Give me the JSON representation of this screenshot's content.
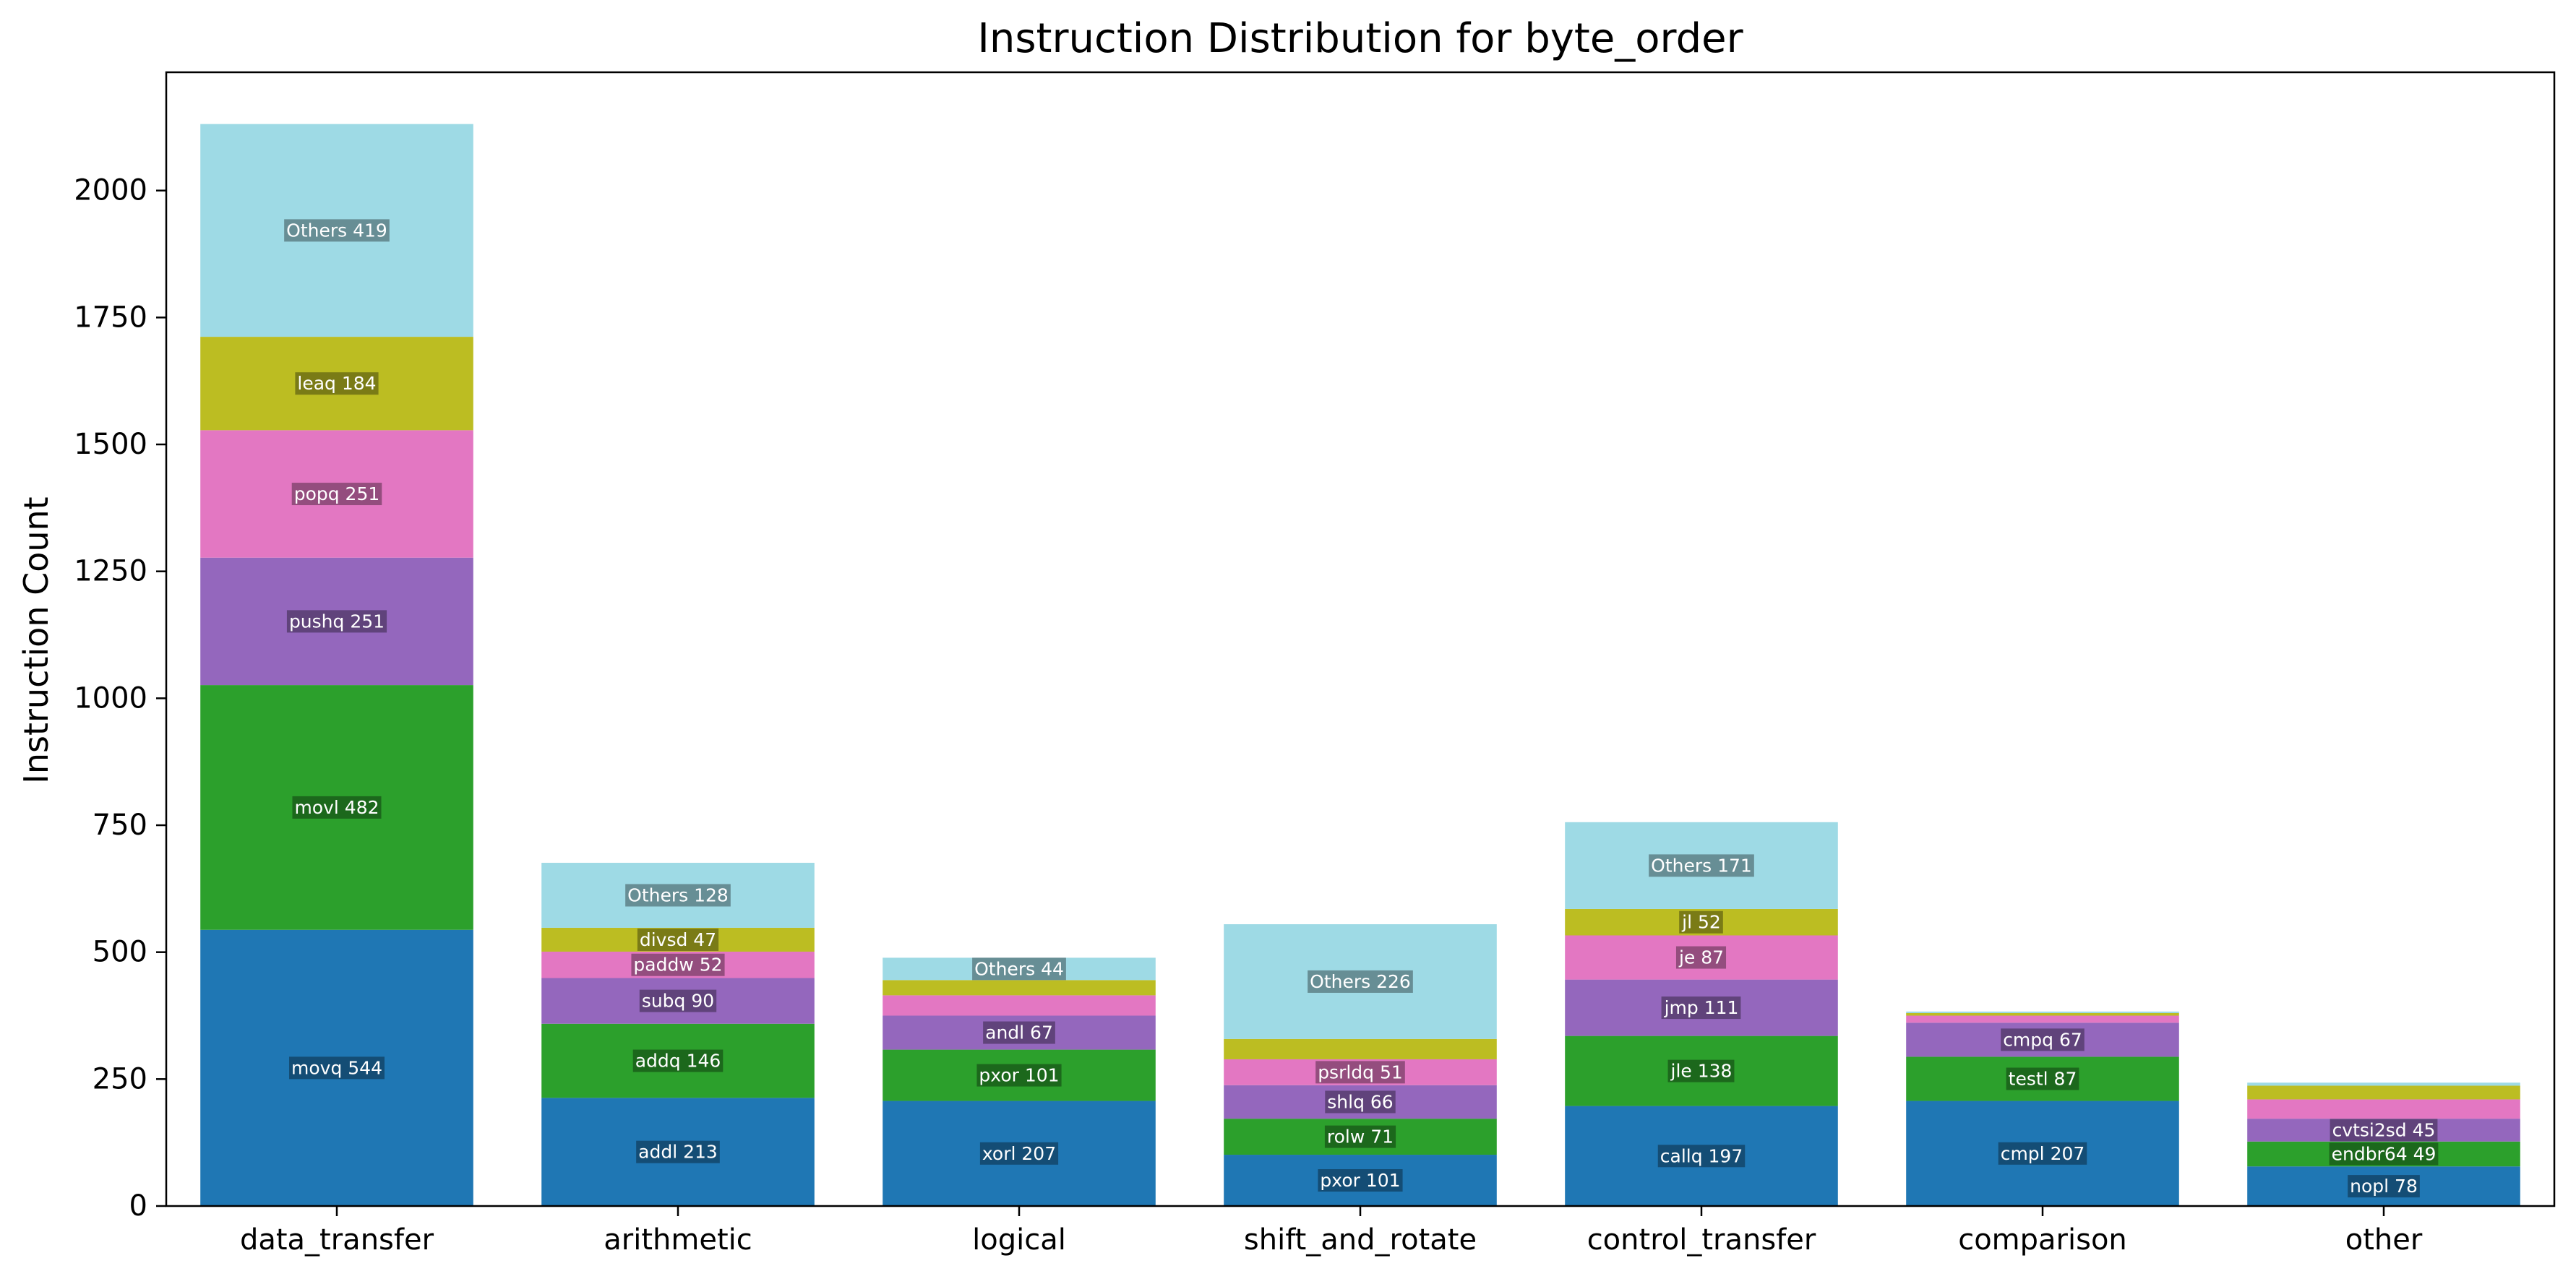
{
  "chart_data": {
    "type": "bar",
    "stacked": true,
    "title": "Instruction Distribution for byte_order",
    "xlabel": "",
    "ylabel": "Instruction Count",
    "ylim": [
      0,
      2233
    ],
    "yticks": [
      0,
      250,
      500,
      750,
      1000,
      1250,
      1500,
      1750,
      2000
    ],
    "grid": false,
    "legend": "none",
    "layer_colors": [
      "#1f77b4",
      "#2ca02c",
      "#9467bd",
      "#e377c2",
      "#bcbd22",
      "#9edae5"
    ],
    "categories": [
      "data_transfer",
      "arithmetic",
      "logical",
      "shift_and_rotate",
      "control_transfer",
      "comparison",
      "other"
    ],
    "stacks": [
      [
        {
          "label": "movq",
          "value": 544
        },
        {
          "label": "movl",
          "value": 482
        },
        {
          "label": "pushq",
          "value": 251
        },
        {
          "label": "popq",
          "value": 251
        },
        {
          "label": "leaq",
          "value": 184
        },
        {
          "label": "Others",
          "value": 419
        }
      ],
      [
        {
          "label": "addl",
          "value": 213
        },
        {
          "label": "addq",
          "value": 146
        },
        {
          "label": "subq",
          "value": 90
        },
        {
          "label": "paddw",
          "value": 52
        },
        {
          "label": "divsd",
          "value": 47
        },
        {
          "label": "Others",
          "value": 128
        }
      ],
      [
        {
          "label": "xorl",
          "value": 207
        },
        {
          "label": "pxor",
          "value": 101
        },
        {
          "label": "andl",
          "value": 67
        },
        {
          "label": "",
          "value": 40
        },
        {
          "label": "",
          "value": 30
        },
        {
          "label": "Others",
          "value": 44
        }
      ],
      [
        {
          "label": "pxor",
          "value": 101
        },
        {
          "label": "rolw",
          "value": 71
        },
        {
          "label": "shlq",
          "value": 66
        },
        {
          "label": "psrldq",
          "value": 51
        },
        {
          "label": "",
          "value": 40
        },
        {
          "label": "Others",
          "value": 226
        }
      ],
      [
        {
          "label": "callq",
          "value": 197
        },
        {
          "label": "jle",
          "value": 138
        },
        {
          "label": "jmp",
          "value": 111
        },
        {
          "label": "je",
          "value": 87
        },
        {
          "label": "jl",
          "value": 52
        },
        {
          "label": "Others",
          "value": 171
        }
      ],
      [
        {
          "label": "cmpl",
          "value": 207
        },
        {
          "label": "testl",
          "value": 87
        },
        {
          "label": "cmpq",
          "value": 67
        },
        {
          "label": "",
          "value": 14
        },
        {
          "label": "",
          "value": 5
        },
        {
          "label": "",
          "value": 3
        }
      ],
      [
        {
          "label": "nopl",
          "value": 78
        },
        {
          "label": "endbr64",
          "value": 49
        },
        {
          "label": "cvtsi2sd",
          "value": 45
        },
        {
          "label": "",
          "value": 38
        },
        {
          "label": "",
          "value": 27
        },
        {
          "label": "",
          "value": 6
        }
      ]
    ]
  }
}
